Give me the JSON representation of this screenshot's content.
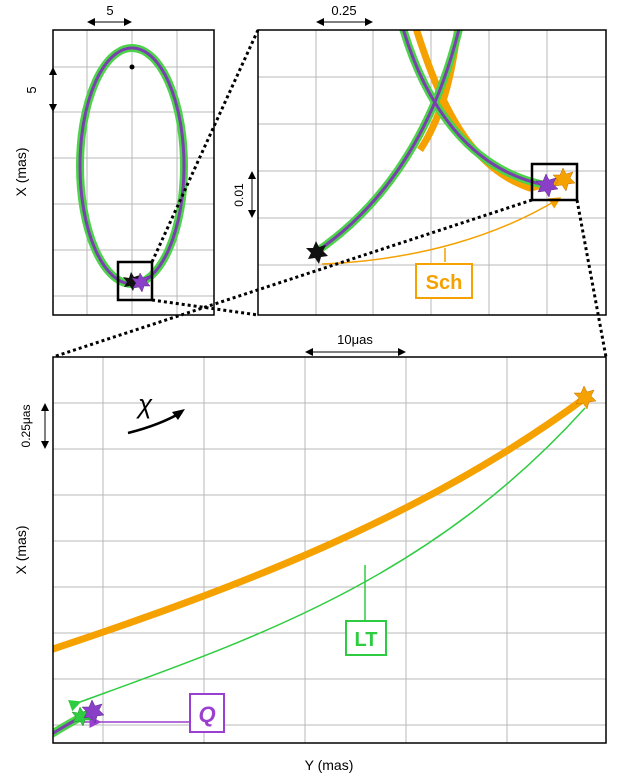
{
  "panels": {
    "top_left": {
      "scale_x_label": "5",
      "scale_y_label": "5",
      "ylabel": "X (mas)"
    },
    "top_right": {
      "scale_x_label": "0.25",
      "scale_y_label": "0.01",
      "effect_label": "Sch",
      "effect_color": "#f5a100"
    },
    "bottom": {
      "scale_x_label": "10μas",
      "scale_y_label": "0.25μas",
      "angle_label": "χ",
      "lt_label": "LT",
      "lt_color": "#2ecc40",
      "q_label": "Q",
      "q_color": "#9b3fd0",
      "ylabel": "X (mas)",
      "xlabel": "Y (mas)"
    }
  },
  "colors": {
    "orbit_outer": "#4cd34a",
    "orbit_inner": "#7b3fb0",
    "sch_orbit": "#f5a100",
    "star_black": "#111111",
    "star_purple": "#8a3fc8",
    "star_orange": "#f5a100",
    "grid": "#b8b8b8"
  }
}
